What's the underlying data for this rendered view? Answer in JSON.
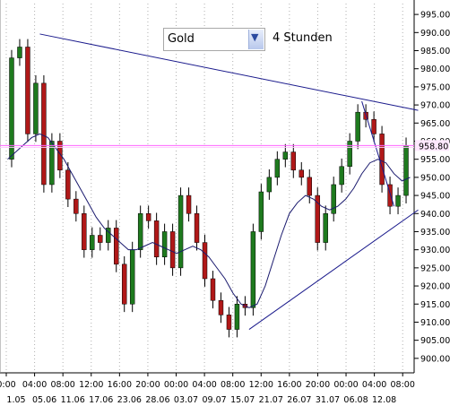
{
  "controls": {
    "instrument_select": "Gold",
    "timeframe_label": "4 Stunden"
  },
  "colors": {
    "up_candle": "#1e7a1e",
    "down_candle": "#b01818",
    "wick": "#000000",
    "moving_average": "#1a1a6e",
    "trendline": "#1a1a8c",
    "current_price_line": "#ff66ff",
    "grid_dotted": "#b0b0b0",
    "axis": "#000000"
  },
  "chart_data": {
    "type": "candlestick",
    "ylim": [
      896,
      998
    ],
    "y_ticks": [
      900,
      905,
      910,
      915,
      920,
      925,
      930,
      935,
      940,
      945,
      950,
      955,
      960,
      965,
      970,
      975,
      980,
      985,
      990,
      995
    ],
    "current_price": 958.8,
    "current_price_label": "958.80",
    "x_time_labels": [
      "0:00",
      "04:00",
      "08:00",
      "12:00",
      "16:00",
      "20:00",
      "00:00",
      "04:00",
      "08:00",
      "12:00",
      "16:00",
      "20:00",
      "00:00",
      "04:00",
      "08:00"
    ],
    "x_date_labels": [
      "1.05",
      "05.06",
      "11.06",
      "17.06",
      "23.06",
      "28.06",
      "03.07",
      "09.07",
      "15.07",
      "21.07",
      "26.07",
      "31.07",
      "06.08",
      "12.08"
    ],
    "close_path": [
      955,
      983,
      986,
      962,
      976,
      948,
      960,
      952,
      944,
      940,
      930,
      934,
      932,
      936,
      926,
      915,
      930,
      940,
      938,
      928,
      935,
      925,
      945,
      940,
      932,
      922,
      916,
      912,
      908,
      915,
      914,
      935,
      946,
      950,
      955,
      957,
      952,
      950,
      945,
      932,
      940,
      948,
      953,
      960,
      968,
      966,
      962,
      948,
      942,
      945,
      958.8
    ],
    "ma_path": [
      955,
      957,
      959,
      961,
      962,
      961,
      958,
      955,
      951,
      947,
      943,
      939,
      936,
      934,
      932,
      930,
      930,
      931,
      932,
      931,
      930,
      929,
      930,
      931,
      930,
      928,
      925,
      922,
      918,
      915,
      914,
      915,
      920,
      927,
      934,
      940,
      943,
      945,
      944,
      942,
      941,
      942,
      944,
      947,
      951,
      954,
      955,
      954,
      951,
      949,
      950
    ],
    "trendlines": [
      {
        "from": {
          "candle": 4,
          "value": 989.6
        },
        "to": {
          "candle": 51,
          "value": 968.5
        }
      },
      {
        "from": {
          "candle": 30,
          "value": 908
        },
        "to": {
          "candle": 51,
          "value": 941
        }
      },
      {
        "from": {
          "candle": 44,
          "value": 971
        },
        "to": {
          "candle": 48,
          "value": 942
        }
      }
    ]
  }
}
